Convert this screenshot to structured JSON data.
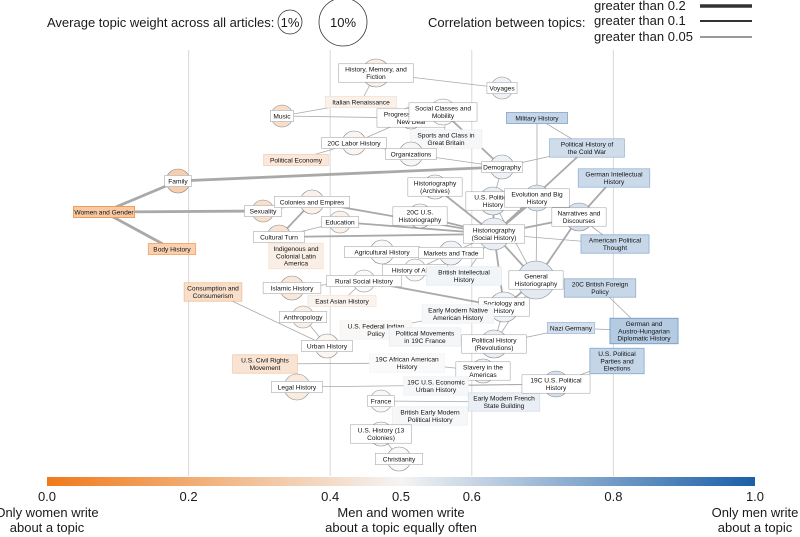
{
  "legend": {
    "size_title": "Average topic weight across all articles:",
    "size_small": "1%",
    "size_large": "10%",
    "corr_title": "Correlation between topics:",
    "corr_levels": [
      "greater than 0.2",
      "greater than 0.1",
      "greater than 0.05"
    ]
  },
  "axis": {
    "ticks": [
      "0.0",
      "0.2",
      "0.4",
      "0.5",
      "0.6",
      "0.8",
      "1.0"
    ],
    "tick_values": [
      0.0,
      0.2,
      0.4,
      0.5,
      0.6,
      0.8,
      1.0
    ],
    "gridlines": [
      0.2,
      0.4,
      0.6,
      0.8
    ],
    "left_caption": [
      "Only women write",
      "about a topic"
    ],
    "middle_caption": [
      "Men and women write",
      "about a topic equally often"
    ],
    "right_caption": [
      "Only men write",
      "about a topic"
    ],
    "color_low": "#f07a1a",
    "color_mid": "#f4f4f4",
    "color_high": "#1a5fa8"
  },
  "chart_data": {
    "type": "network",
    "x_meaning": "share of men writing about a topic",
    "xlim": [
      0.0,
      1.0
    ],
    "nodes": [
      {
        "id": "women_gender",
        "label": [
          "Women and Gender"
        ],
        "x": 0.03,
        "v": 0.06,
        "shape": "rect"
      },
      {
        "id": "family",
        "label": [
          "Family"
        ],
        "x": 0.11,
        "v": 0.1,
        "shape": "circle",
        "r": 12
      },
      {
        "id": "body_history",
        "label": [
          "Body History"
        ],
        "x": 0.11,
        "v": 0.13,
        "shape": "rect"
      },
      {
        "id": "music",
        "label": [
          "Music"
        ],
        "x": 0.36,
        "v": 0.24,
        "shape": "circle",
        "r": 11
      },
      {
        "id": "political_economy",
        "label": [
          "Political Economy"
        ],
        "x": 0.36,
        "v": 0.34,
        "shape": "rect"
      },
      {
        "id": "sexuality",
        "label": [
          "Sexuality"
        ],
        "x": 0.35,
        "v": 0.26,
        "shape": "circle",
        "r": 11
      },
      {
        "id": "cultural_turn",
        "label": [
          "Cultural Turn"
        ],
        "x": 0.36,
        "v": 0.3,
        "shape": "circle",
        "r": 12
      },
      {
        "id": "consumption",
        "label": [
          "Consumption and",
          "Consumerism"
        ],
        "x": 0.29,
        "v": 0.25,
        "shape": "rect"
      },
      {
        "id": "islamic_history",
        "label": [
          "Islamic History"
        ],
        "x": 0.35,
        "v": 0.34,
        "shape": "circle",
        "r": 12
      },
      {
        "id": "anthropology",
        "label": [
          "Anthropology"
        ],
        "x": 0.37,
        "v": 0.4,
        "shape": "circle",
        "r": 11
      },
      {
        "id": "us_civil_rights",
        "label": [
          "U.S. Civil Rights",
          "Movement"
        ],
        "x": 0.36,
        "v": 0.3,
        "shape": "rect"
      },
      {
        "id": "legal_history",
        "label": [
          "Legal History"
        ],
        "x": 0.37,
        "v": 0.36,
        "shape": "circle",
        "r": 13
      },
      {
        "id": "history_memory",
        "label": [
          "History, Memory, and",
          "Fiction"
        ],
        "x": 0.48,
        "v": 0.4,
        "shape": "circle",
        "r": 14
      },
      {
        "id": "italian_renaissance",
        "label": [
          "Italian Renaissance"
        ],
        "x": 0.44,
        "v": 0.42,
        "shape": "rect"
      },
      {
        "id": "progressive_era",
        "label": [
          "Progressive Era to",
          "New Deal"
        ],
        "x": 0.49,
        "v": 0.44,
        "shape": "circle",
        "r": 11
      },
      {
        "id": "labor_20c",
        "label": [
          "20C Labor History"
        ],
        "x": 0.45,
        "v": 0.45,
        "shape": "circle",
        "r": 12
      },
      {
        "id": "colonies_empires",
        "label": [
          "Colonies and Empires"
        ],
        "x": 0.42,
        "v": 0.42,
        "shape": "circle",
        "r": 12
      },
      {
        "id": "education",
        "label": [
          "Education"
        ],
        "x": 0.44,
        "v": 0.42,
        "shape": "circle",
        "r": 11
      },
      {
        "id": "indigenous_latam",
        "label": [
          "Indigenous and",
          "Colonial Latin",
          "America"
        ],
        "x": 0.42,
        "v": 0.4,
        "shape": "rect"
      },
      {
        "id": "east_asian",
        "label": [
          "East Asian History"
        ],
        "x": 0.43,
        "v": 0.44,
        "shape": "rect"
      },
      {
        "id": "us_federal_indian",
        "label": [
          "U.S. Federal Indian",
          "Policy"
        ],
        "x": 0.46,
        "v": 0.48,
        "shape": "rect"
      },
      {
        "id": "urban_history",
        "label": [
          "Urban History"
        ],
        "x": 0.42,
        "v": 0.46,
        "shape": "circle",
        "r": 12
      },
      {
        "id": "social_classes",
        "label": [
          "Social Classes and",
          "Mobility"
        ],
        "x": 0.57,
        "v": 0.5,
        "shape": "circle",
        "r": 13
      },
      {
        "id": "sports_class",
        "label": [
          "Sports and Class in",
          "Great Britain"
        ],
        "x": 0.54,
        "v": 0.52,
        "shape": "rect"
      },
      {
        "id": "organizations",
        "label": [
          "Organizations"
        ],
        "x": 0.53,
        "v": 0.53,
        "shape": "circle",
        "r": 12
      },
      {
        "id": "voyages",
        "label": [
          "Voyages"
        ],
        "x": 0.64,
        "v": 0.56,
        "shape": "circle",
        "r": 11
      },
      {
        "id": "demography",
        "label": [
          "Demography"
        ],
        "x": 0.64,
        "v": 0.56,
        "shape": "circle",
        "r": 12
      },
      {
        "id": "historiography_archives",
        "label": [
          "Historiography",
          "(Archives)"
        ],
        "x": 0.56,
        "v": 0.52,
        "shape": "circle",
        "r": 12
      },
      {
        "id": "us_historiography_20c",
        "label": [
          "20C U.S.",
          "Historiography"
        ],
        "x": 0.52,
        "v": 0.5,
        "shape": "circle",
        "r": 12
      },
      {
        "id": "us_political_history",
        "label": [
          "U.S. Political",
          "History"
        ],
        "x": 0.63,
        "v": 0.58,
        "shape": "circle",
        "r": 14
      },
      {
        "id": "historiography_social",
        "label": [
          "Historiography",
          "(Social History)"
        ],
        "x": 0.65,
        "v": 0.58,
        "shape": "circle",
        "r": 16
      },
      {
        "id": "agricultural_history",
        "label": [
          "Agricultural History"
        ],
        "x": 0.48,
        "v": 0.49,
        "shape": "circle",
        "r": 12
      },
      {
        "id": "markets_trade",
        "label": [
          "Markets and Trade"
        ],
        "x": 0.56,
        "v": 0.55,
        "shape": "circle",
        "r": 12
      },
      {
        "id": "history_africa",
        "label": [
          "History of Africa"
        ],
        "x": 0.51,
        "v": 0.49,
        "shape": "circle",
        "r": 11
      },
      {
        "id": "rural_social",
        "label": [
          "Rural Social History"
        ],
        "x": 0.48,
        "v": 0.5,
        "shape": "circle",
        "r": 11
      },
      {
        "id": "british_intellectual",
        "label": [
          "British Intellectual",
          "History"
        ],
        "x": 0.58,
        "v": 0.54,
        "shape": "rect"
      },
      {
        "id": "sociology_history",
        "label": [
          "Sociology and",
          "History"
        ],
        "x": 0.63,
        "v": 0.55,
        "shape": "circle",
        "r": 15
      },
      {
        "id": "early_modern_native",
        "label": [
          "Early Modern Native",
          "American History"
        ],
        "x": 0.56,
        "v": 0.52,
        "shape": "rect"
      },
      {
        "id": "political_movements_france",
        "label": [
          "Political Movements",
          "in 19C France"
        ],
        "x": 0.54,
        "v": 0.53,
        "shape": "rect"
      },
      {
        "id": "political_history_revolutions",
        "label": [
          "Political History",
          "(Revolutions)"
        ],
        "x": 0.62,
        "v": 0.58,
        "shape": "circle",
        "r": 14
      },
      {
        "id": "african_american_19c",
        "label": [
          "19C African American",
          "History"
        ],
        "x": 0.51,
        "v": 0.5,
        "shape": "rect"
      },
      {
        "id": "slavery_americas",
        "label": [
          "Slavery in the",
          "Americas"
        ],
        "x": 0.63,
        "v": 0.57,
        "shape": "circle",
        "r": 12
      },
      {
        "id": "us_economic_urban_19c",
        "label": [
          "19C U.S. Economic",
          "Urban History"
        ],
        "x": 0.54,
        "v": 0.52,
        "shape": "rect"
      },
      {
        "id": "france",
        "label": [
          "France"
        ],
        "x": 0.48,
        "v": 0.48,
        "shape": "circle",
        "r": 11
      },
      {
        "id": "early_modern_french_state",
        "label": [
          "Early Modern French",
          "State Building"
        ],
        "x": 0.64,
        "v": 0.58,
        "shape": "rect"
      },
      {
        "id": "british_early_modern_political",
        "label": [
          "British Early Modern",
          "Political History"
        ],
        "x": 0.53,
        "v": 0.52,
        "shape": "rect"
      },
      {
        "id": "us_history_13_colonies",
        "label": [
          "U.S. History (13",
          "Colonies)"
        ],
        "x": 0.49,
        "v": 0.48,
        "shape": "circle",
        "r": 12
      },
      {
        "id": "christianity",
        "label": [
          "Christianity"
        ],
        "x": 0.5,
        "v": 0.5,
        "shape": "circle",
        "r": 12
      },
      {
        "id": "military_history",
        "label": [
          "Military History"
        ],
        "x": 0.7,
        "v": 0.78,
        "shape": "rect"
      },
      {
        "id": "political_history_cold_war",
        "label": [
          "Political History of",
          "the Cold War"
        ],
        "x": 0.79,
        "v": 0.72,
        "shape": "rect"
      },
      {
        "id": "evolution_big_history",
        "label": [
          "Evolution and Big",
          "History"
        ],
        "x": 0.73,
        "v": 0.64,
        "shape": "circle",
        "r": 13
      },
      {
        "id": "german_intellectual",
        "label": [
          "German Intellectual",
          "History"
        ],
        "x": 0.84,
        "v": 0.74,
        "shape": "rect"
      },
      {
        "id": "narratives_discourses",
        "label": [
          "Narratives and",
          "Discourses"
        ],
        "x": 0.76,
        "v": 0.68,
        "shape": "circle",
        "r": 14
      },
      {
        "id": "general_historiography",
        "label": [
          "General",
          "Historiography"
        ],
        "x": 0.71,
        "v": 0.62,
        "shape": "circle",
        "r": 19
      },
      {
        "id": "american_political_thought",
        "label": [
          "American Political",
          "Thought"
        ],
        "x": 0.84,
        "v": 0.76,
        "shape": "rect"
      },
      {
        "id": "british_foreign_policy_20c",
        "label": [
          "20C British Foreign",
          "Policy"
        ],
        "x": 0.8,
        "v": 0.76,
        "shape": "rect"
      },
      {
        "id": "nazi_germany",
        "label": [
          "Nazi Germany"
        ],
        "x": 0.74,
        "v": 0.7,
        "shape": "rect"
      },
      {
        "id": "german_austro_hungarian",
        "label": [
          "German and",
          "Austro-Hungarian",
          "Diplomatic History"
        ],
        "x": 0.9,
        "v": 0.85,
        "shape": "rect"
      },
      {
        "id": "us_political_parties",
        "label": [
          "U.S. Political",
          "Parties and",
          "Elections"
        ],
        "x": 0.83,
        "v": 0.78,
        "shape": "rect"
      },
      {
        "id": "us_political_history_19c",
        "label": [
          "19C U.S. Political",
          "History"
        ],
        "x": 0.72,
        "v": 0.7,
        "shape": "circle",
        "r": 13
      }
    ],
    "edges": [
      {
        "s": "women_gender",
        "t": "family",
        "w": 3
      },
      {
        "s": "women_gender",
        "t": "body_history",
        "w": 3
      },
      {
        "s": "women_gender",
        "t": "sexuality",
        "w": 3
      },
      {
        "s": "family",
        "t": "demography",
        "w": 3
      },
      {
        "s": "sexuality",
        "t": "colonies_empires",
        "w": 2
      },
      {
        "s": "cultural_turn",
        "t": "colonies_empires",
        "w": 2
      },
      {
        "s": "cultural_turn",
        "t": "historiography_social",
        "w": 2
      },
      {
        "s": "cultural_turn",
        "t": "education",
        "w": 1
      },
      {
        "s": "cultural_turn",
        "t": "indigenous_latam",
        "w": 1
      },
      {
        "s": "music",
        "t": "italian_renaissance",
        "w": 1
      },
      {
        "s": "italian_renaissance",
        "t": "history_memory",
        "w": 1
      },
      {
        "s": "history_memory",
        "t": "voyages",
        "w": 1
      },
      {
        "s": "music",
        "t": "progressive_era",
        "w": 1
      },
      {
        "s": "progressive_era",
        "t": "labor_20c",
        "w": 1
      },
      {
        "s": "political_economy",
        "t": "labor_20c",
        "w": 1
      },
      {
        "s": "labor_20c",
        "t": "organizations",
        "w": 1
      },
      {
        "s": "organizations",
        "t": "demography",
        "w": 1
      },
      {
        "s": "social_classes",
        "t": "demography",
        "w": 2
      },
      {
        "s": "sports_class",
        "t": "social_classes",
        "w": 1
      },
      {
        "s": "demography",
        "t": "political_history_cold_war",
        "w": 1
      },
      {
        "s": "demography",
        "t": "us_political_history",
        "w": 1
      },
      {
        "s": "colonies_empires",
        "t": "historiography_social",
        "w": 2
      },
      {
        "s": "education",
        "t": "historiography_social",
        "w": 2
      },
      {
        "s": "us_historiography_20c",
        "t": "historiography_social",
        "w": 2
      },
      {
        "s": "historiography_archives",
        "t": "historiography_social",
        "w": 2
      },
      {
        "s": "us_political_history",
        "t": "historiography_social",
        "w": 2
      },
      {
        "s": "evolution_big_history",
        "t": "historiography_social",
        "w": 2
      },
      {
        "s": "narratives_discourses",
        "t": "historiography_social",
        "w": 2
      },
      {
        "s": "political_history_cold_war",
        "t": "historiography_social",
        "w": 2
      },
      {
        "s": "historiography_social",
        "t": "general_historiography",
        "w": 2
      },
      {
        "s": "historiography_social",
        "t": "markets_trade",
        "w": 1
      },
      {
        "s": "historiography_social",
        "t": "sociology_history",
        "w": 2
      },
      {
        "s": "historiography_social",
        "t": "british_intellectual",
        "w": 1
      },
      {
        "s": "historiography_social",
        "t": "american_political_thought",
        "w": 1
      },
      {
        "s": "german_intellectual",
        "t": "narratives_discourses",
        "w": 2
      },
      {
        "s": "narratives_discourses",
        "t": "general_historiography",
        "w": 2
      },
      {
        "s": "evolution_big_history",
        "t": "general_historiography",
        "w": 1
      },
      {
        "s": "military_history",
        "t": "political_history_cold_war",
        "w": 1
      },
      {
        "s": "military_history",
        "t": "evolution_big_history",
        "w": 1
      },
      {
        "s": "american_political_thought",
        "t": "narratives_discourses",
        "w": 1
      },
      {
        "s": "general_historiography",
        "t": "sociology_history",
        "w": 2
      },
      {
        "s": "general_historiography",
        "t": "political_history_revolutions",
        "w": 1
      },
      {
        "s": "agricultural_history",
        "t": "markets_trade",
        "w": 1
      },
      {
        "s": "history_africa",
        "t": "markets_trade",
        "w": 1
      },
      {
        "s": "rural_social",
        "t": "sociology_history",
        "w": 2
      },
      {
        "s": "islamic_history",
        "t": "rural_social",
        "w": 1
      },
      {
        "s": "east_asian",
        "t": "rural_social",
        "w": 1
      },
      {
        "s": "anthropology",
        "t": "urban_history",
        "w": 1
      },
      {
        "s": "consumption",
        "t": "urban_history",
        "w": 1
      },
      {
        "s": "us_federal_indian",
        "t": "early_modern_native",
        "w": 1
      },
      {
        "s": "political_movements_france",
        "t": "political_history_revolutions",
        "w": 1
      },
      {
        "s": "political_history_revolutions",
        "t": "nazi_germany",
        "w": 1
      },
      {
        "s": "nazi_germany",
        "t": "german_austro_hungarian",
        "w": 1
      },
      {
        "s": "british_foreign_policy_20c",
        "t": "german_austro_hungarian",
        "w": 1
      },
      {
        "s": "us_civil_rights",
        "t": "african_american_19c",
        "w": 1
      },
      {
        "s": "african_american_19c",
        "t": "slavery_americas",
        "w": 1
      },
      {
        "s": "legal_history",
        "t": "us_political_history_19c",
        "w": 1
      },
      {
        "s": "us_economic_urban_19c",
        "t": "us_political_history_19c",
        "w": 1
      },
      {
        "s": "us_political_parties",
        "t": "us_political_history_19c",
        "w": 1
      },
      {
        "s": "france",
        "t": "early_modern_french_state",
        "w": 1
      },
      {
        "s": "british_early_modern_political",
        "t": "early_modern_french_state",
        "w": 1
      },
      {
        "s": "us_history_13_colonies",
        "t": "christianity",
        "w": 1
      },
      {
        "s": "sociology_history",
        "t": "political_history_revolutions",
        "w": 1
      },
      {
        "s": "sports_class",
        "t": "organizations",
        "w": 1
      },
      {
        "s": "general_historiography",
        "t": "us_political_history",
        "w": 1
      }
    ]
  }
}
